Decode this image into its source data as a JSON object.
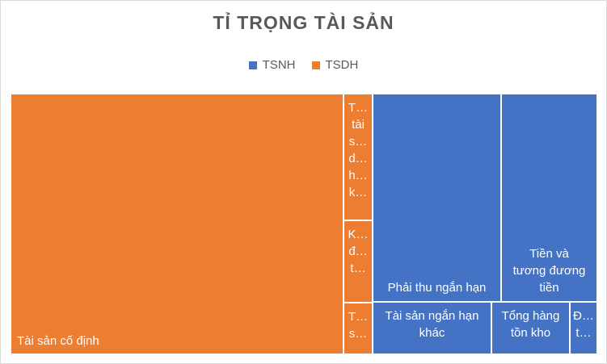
{
  "chart_data": {
    "type": "treemap",
    "title": "TỈ TRỌNG TÀI SẢN",
    "legend": {
      "position": "top",
      "entries": [
        {
          "name": "TSNH",
          "color": "#4472C4"
        },
        {
          "name": "TSDH",
          "color": "#ED7D31"
        }
      ]
    },
    "items": [
      {
        "label": "Tài sản cố định",
        "group": "TSDH"
      },
      {
        "label": "T…\ntài\ns…\nd…\nh…\nk…",
        "group": "TSDH"
      },
      {
        "label": "K…\nđ…\nt…",
        "group": "TSDH"
      },
      {
        "label": "T…\ns…",
        "group": "TSDH"
      },
      {
        "label": "Phải thu ngắn hạn",
        "group": "TSNH"
      },
      {
        "label": "Tiền và\ntương đương\ntiền",
        "group": "TSNH"
      },
      {
        "label": "Tài sản ngắn hạn\nkhác",
        "group": "TSNH"
      },
      {
        "label": "Tổng hàng\ntồn kho",
        "group": "TSNH"
      },
      {
        "label": "Đ…\nt…",
        "group": "TSNH"
      }
    ]
  }
}
